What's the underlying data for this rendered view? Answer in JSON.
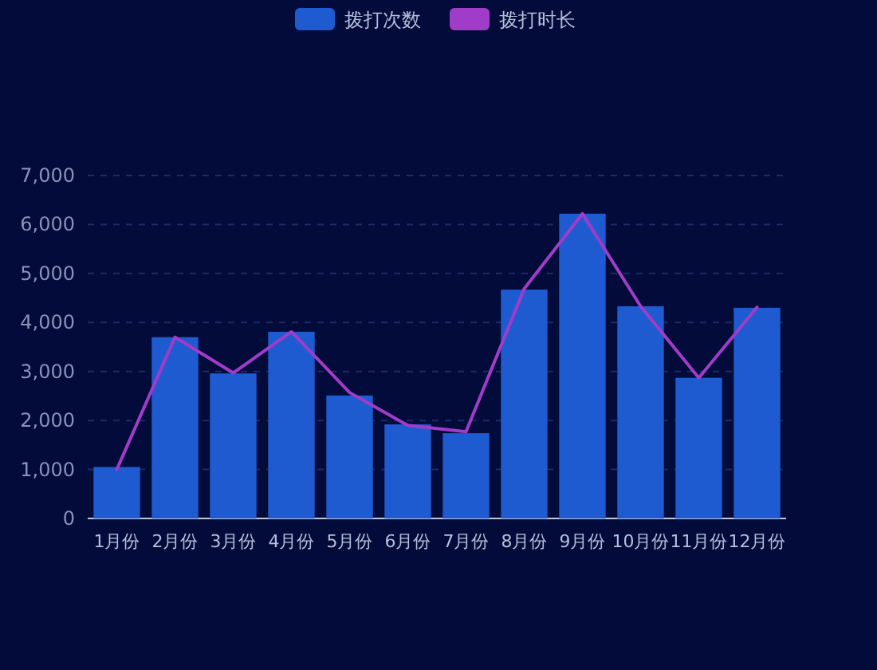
{
  "chart_data": {
    "type": "bar",
    "categories": [
      "1月份",
      "2月份",
      "3月份",
      "4月份",
      "5月份",
      "6月份",
      "7月份",
      "8月份",
      "9月份",
      "10月份",
      "11月份",
      "12月份"
    ],
    "series": [
      {
        "name": "拨打次数",
        "color": "#1f5bd0",
        "values": [
          1050,
          3700,
          2960,
          3810,
          2510,
          1920,
          1740,
          4670,
          6220,
          4330,
          2870,
          4300
        ]
      },
      {
        "name": "拨打时长",
        "type": "line",
        "color": "#a03cc8",
        "values": [
          1000,
          3700,
          2970,
          3810,
          2570,
          1900,
          1770,
          4690,
          6220,
          4330,
          2870,
          4310
        ]
      }
    ],
    "ylim": [
      0,
      7000
    ],
    "yticks": [
      {
        "value": 0,
        "label": "0"
      },
      {
        "value": 1000,
        "label": "1,000"
      },
      {
        "value": 2000,
        "label": "2,000"
      },
      {
        "value": 3000,
        "label": "3,000"
      },
      {
        "value": 4000,
        "label": "4,000"
      },
      {
        "value": 5000,
        "label": "5,000"
      },
      {
        "value": 6000,
        "label": "6,000"
      },
      {
        "value": 7000,
        "label": "7,000"
      }
    ],
    "grid": "y",
    "legend": "top"
  }
}
